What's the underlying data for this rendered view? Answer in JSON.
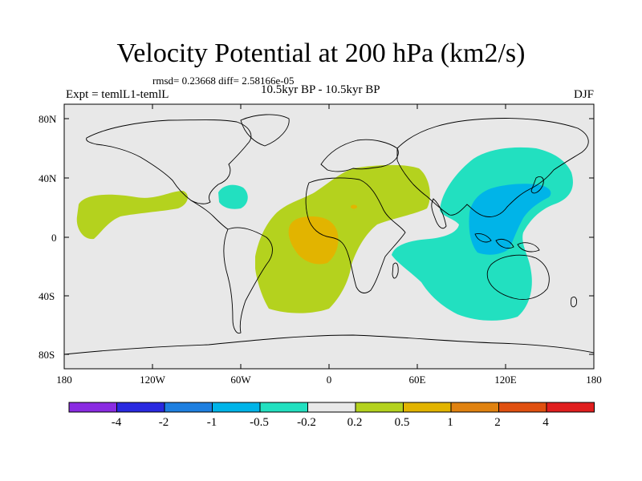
{
  "title": "Velocity Potential at 200 hPa (km2/s)",
  "stats": "rmsd= 0.23668 diff= 2.58166e-05",
  "experiment": "Expt = temlL1-temlL",
  "period": "10.5kyr BP - 10.5kyr BP",
  "season": "DJF",
  "lat_labels": [
    "80N",
    "40N",
    "0",
    "40S",
    "80S"
  ],
  "lon_labels": [
    "180",
    "120W",
    "60W",
    "0",
    "60E",
    "120E",
    "180"
  ],
  "colorbar": {
    "colors": [
      "#8a2be2",
      "#2929e0",
      "#1e7fe0",
      "#00b4e8",
      "#22e0c0",
      "#e8e8e8",
      "#b4d21e",
      "#e2b400",
      "#e08210",
      "#e05010",
      "#e01e1e"
    ],
    "labels": [
      "-4",
      "-2",
      "-1",
      "-0.5",
      "-0.2",
      "0.2",
      "0.5",
      "1",
      "2",
      "4"
    ]
  },
  "field_colors": {
    "ocean": "#e8e8e8",
    "pos_weak": "#b4d21e",
    "pos_mid": "#e2b400",
    "neg_weak": "#22e0c0",
    "neg_mid": "#00b4e8"
  }
}
